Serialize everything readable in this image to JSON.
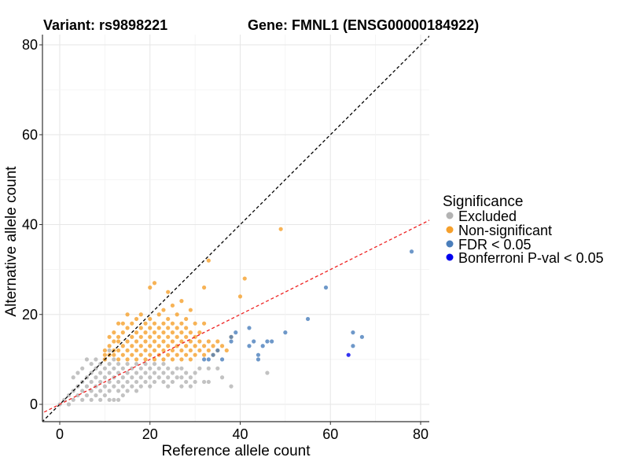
{
  "chart_data": {
    "type": "scatter",
    "title_left": "Variant: rs9898221",
    "title_right": "Gene: FMNL1 (ENSG00000184922)",
    "xlabel": "Reference allele count",
    "ylabel": "Alternative allele count",
    "xlim": [
      -4,
      82
    ],
    "ylim": [
      -4,
      82
    ],
    "xticks": [
      0,
      20,
      40,
      60,
      80
    ],
    "yticks": [
      0,
      20,
      40,
      60,
      80
    ],
    "grid": true,
    "legend": {
      "title": "Significance",
      "position": "right",
      "entries": [
        {
          "label": "Excluded",
          "color": "#b3b3b3"
        },
        {
          "label": "Non-significant",
          "color": "#f5a02c"
        },
        {
          "label": "FDR < 0.05",
          "color": "#4a7ebb"
        },
        {
          "label": "Bonferroni P-val < 0.05",
          "color": "#0000ee"
        }
      ]
    },
    "reference_lines": [
      {
        "name": "identity-line",
        "slope": 1,
        "intercept": 0,
        "color": "#000000",
        "dash": "dashed"
      },
      {
        "name": "fitted-ratio-line",
        "slope": 0.5,
        "intercept": 0,
        "color": "#ee2222",
        "dash": "dashed"
      }
    ],
    "series": [
      {
        "name": "Excluded",
        "color": "#b3b3b3",
        "points": [
          [
            0,
            0
          ],
          [
            1,
            1
          ],
          [
            2,
            0
          ],
          [
            2,
            2
          ],
          [
            3,
            1
          ],
          [
            3,
            3
          ],
          [
            4,
            2
          ],
          [
            4,
            4
          ],
          [
            5,
            1
          ],
          [
            5,
            3
          ],
          [
            5,
            5
          ],
          [
            6,
            2
          ],
          [
            6,
            4
          ],
          [
            6,
            6
          ],
          [
            7,
            1
          ],
          [
            7,
            3
          ],
          [
            7,
            5
          ],
          [
            7,
            7
          ],
          [
            8,
            2
          ],
          [
            8,
            4
          ],
          [
            8,
            6
          ],
          [
            8,
            8
          ],
          [
            9,
            1
          ],
          [
            9,
            3
          ],
          [
            9,
            5
          ],
          [
            9,
            7
          ],
          [
            9,
            9
          ],
          [
            10,
            2
          ],
          [
            10,
            4
          ],
          [
            10,
            6
          ],
          [
            10,
            8
          ],
          [
            10,
            10
          ],
          [
            11,
            1
          ],
          [
            11,
            3
          ],
          [
            11,
            5
          ],
          [
            11,
            7
          ],
          [
            11,
            9
          ],
          [
            11,
            12
          ],
          [
            12,
            1
          ],
          [
            12,
            4
          ],
          [
            12,
            6
          ],
          [
            12,
            8
          ],
          [
            12,
            10
          ],
          [
            13,
            1
          ],
          [
            13,
            3
          ],
          [
            13,
            5
          ],
          [
            13,
            7
          ],
          [
            13,
            9
          ],
          [
            14,
            2
          ],
          [
            14,
            4
          ],
          [
            14,
            6
          ],
          [
            14,
            8
          ],
          [
            15,
            3
          ],
          [
            15,
            5
          ],
          [
            15,
            7
          ],
          [
            15,
            9
          ],
          [
            16,
            4
          ],
          [
            16,
            6
          ],
          [
            16,
            8
          ],
          [
            17,
            3
          ],
          [
            17,
            5
          ],
          [
            17,
            7
          ],
          [
            17,
            9
          ],
          [
            18,
            4
          ],
          [
            18,
            6
          ],
          [
            18,
            8
          ],
          [
            19,
            5
          ],
          [
            19,
            7
          ],
          [
            19,
            9
          ],
          [
            20,
            4
          ],
          [
            20,
            6
          ],
          [
            20,
            8
          ],
          [
            21,
            5
          ],
          [
            21,
            7
          ],
          [
            21,
            9
          ],
          [
            22,
            6
          ],
          [
            22,
            8
          ],
          [
            23,
            5
          ],
          [
            23,
            7
          ],
          [
            23,
            9
          ],
          [
            24,
            4
          ],
          [
            24,
            6
          ],
          [
            24,
            8
          ],
          [
            25,
            5
          ],
          [
            25,
            7
          ],
          [
            26,
            6
          ],
          [
            26,
            8
          ],
          [
            27,
            4
          ],
          [
            27,
            6
          ],
          [
            27,
            8
          ],
          [
            28,
            5
          ],
          [
            28,
            7
          ],
          [
            29,
            4
          ],
          [
            29,
            6
          ],
          [
            30,
            5
          ],
          [
            30,
            7
          ],
          [
            31,
            8
          ],
          [
            32,
            5
          ],
          [
            33,
            5
          ],
          [
            33,
            8
          ],
          [
            35,
            8
          ],
          [
            36,
            6
          ],
          [
            38,
            4
          ],
          [
            46,
            7
          ],
          [
            6,
            10
          ],
          [
            7,
            9
          ],
          [
            8,
            10
          ],
          [
            5,
            8
          ],
          [
            4,
            7
          ],
          [
            3,
            6
          ]
        ]
      },
      {
        "name": "Non-significant",
        "color": "#f5a02c",
        "points": [
          [
            10,
            10
          ],
          [
            10,
            11
          ],
          [
            10,
            12
          ],
          [
            11,
            11
          ],
          [
            11,
            13
          ],
          [
            12,
            11
          ],
          [
            12,
            12
          ],
          [
            12,
            14
          ],
          [
            13,
            10
          ],
          [
            13,
            12
          ],
          [
            13,
            14
          ],
          [
            13,
            15
          ],
          [
            14,
            11
          ],
          [
            14,
            13
          ],
          [
            14,
            16
          ],
          [
            15,
            10
          ],
          [
            15,
            12
          ],
          [
            15,
            14
          ],
          [
            15,
            17
          ],
          [
            16,
            11
          ],
          [
            16,
            13
          ],
          [
            16,
            15
          ],
          [
            16,
            18
          ],
          [
            17,
            10
          ],
          [
            17,
            12
          ],
          [
            17,
            14
          ],
          [
            17,
            16
          ],
          [
            17,
            19
          ],
          [
            18,
            11
          ],
          [
            18,
            13
          ],
          [
            18,
            15
          ],
          [
            18,
            17
          ],
          [
            18,
            20
          ],
          [
            19,
            10
          ],
          [
            19,
            12
          ],
          [
            19,
            14
          ],
          [
            19,
            16
          ],
          [
            19,
            18
          ],
          [
            20,
            11
          ],
          [
            20,
            13
          ],
          [
            20,
            15
          ],
          [
            20,
            17
          ],
          [
            20,
            19
          ],
          [
            20,
            26
          ],
          [
            21,
            10
          ],
          [
            21,
            12
          ],
          [
            21,
            14
          ],
          [
            21,
            16
          ],
          [
            21,
            18
          ],
          [
            21,
            27
          ],
          [
            22,
            11
          ],
          [
            22,
            13
          ],
          [
            22,
            15
          ],
          [
            22,
            17
          ],
          [
            22,
            20
          ],
          [
            23,
            10
          ],
          [
            23,
            12
          ],
          [
            23,
            14
          ],
          [
            23,
            16
          ],
          [
            23,
            18
          ],
          [
            23,
            21
          ],
          [
            24,
            11
          ],
          [
            24,
            13
          ],
          [
            24,
            15
          ],
          [
            24,
            17
          ],
          [
            24,
            19
          ],
          [
            24,
            25
          ],
          [
            25,
            10
          ],
          [
            25,
            12
          ],
          [
            25,
            14
          ],
          [
            25,
            16
          ],
          [
            25,
            18
          ],
          [
            25,
            22
          ],
          [
            26,
            11
          ],
          [
            26,
            13
          ],
          [
            26,
            15
          ],
          [
            26,
            17
          ],
          [
            26,
            20
          ],
          [
            27,
            10
          ],
          [
            27,
            12
          ],
          [
            27,
            14
          ],
          [
            27,
            16
          ],
          [
            27,
            18
          ],
          [
            27,
            23
          ],
          [
            28,
            11
          ],
          [
            28,
            13
          ],
          [
            28,
            15
          ],
          [
            28,
            17
          ],
          [
            28,
            19
          ],
          [
            29,
            10
          ],
          [
            29,
            12
          ],
          [
            29,
            14
          ],
          [
            29,
            16
          ],
          [
            29,
            21
          ],
          [
            30,
            11
          ],
          [
            30,
            13
          ],
          [
            30,
            15
          ],
          [
            30,
            18
          ],
          [
            31,
            12
          ],
          [
            31,
            14
          ],
          [
            31,
            16
          ],
          [
            32,
            11
          ],
          [
            32,
            13
          ],
          [
            32,
            18
          ],
          [
            32,
            26
          ],
          [
            33,
            12
          ],
          [
            33,
            14
          ],
          [
            33,
            32
          ],
          [
            34,
            11
          ],
          [
            34,
            13
          ],
          [
            35,
            12
          ],
          [
            35,
            14
          ],
          [
            36,
            13
          ],
          [
            37,
            12
          ],
          [
            38,
            15
          ],
          [
            40,
            24
          ],
          [
            41,
            28
          ],
          [
            49,
            39
          ],
          [
            12,
            16
          ],
          [
            13,
            18
          ],
          [
            14,
            18
          ],
          [
            15,
            20
          ],
          [
            11,
            15
          ]
        ]
      },
      {
        "name": "FDR < 0.05",
        "color": "#4a7ebb",
        "points": [
          [
            32,
            10
          ],
          [
            33,
            10
          ],
          [
            34,
            11
          ],
          [
            35,
            12
          ],
          [
            36,
            10
          ],
          [
            38,
            14
          ],
          [
            38,
            15
          ],
          [
            39,
            16
          ],
          [
            42,
            17
          ],
          [
            42,
            13
          ],
          [
            43,
            14
          ],
          [
            44,
            11
          ],
          [
            44,
            10
          ],
          [
            45,
            13
          ],
          [
            46,
            14
          ],
          [
            47,
            14
          ],
          [
            50,
            16
          ],
          [
            55,
            19
          ],
          [
            59,
            26
          ],
          [
            65,
            16
          ],
          [
            65,
            13
          ],
          [
            67,
            15
          ],
          [
            78,
            34
          ]
        ]
      },
      {
        "name": "Bonferroni P-val < 0.05",
        "color": "#0000ee",
        "points": [
          [
            64,
            11
          ]
        ]
      }
    ]
  }
}
